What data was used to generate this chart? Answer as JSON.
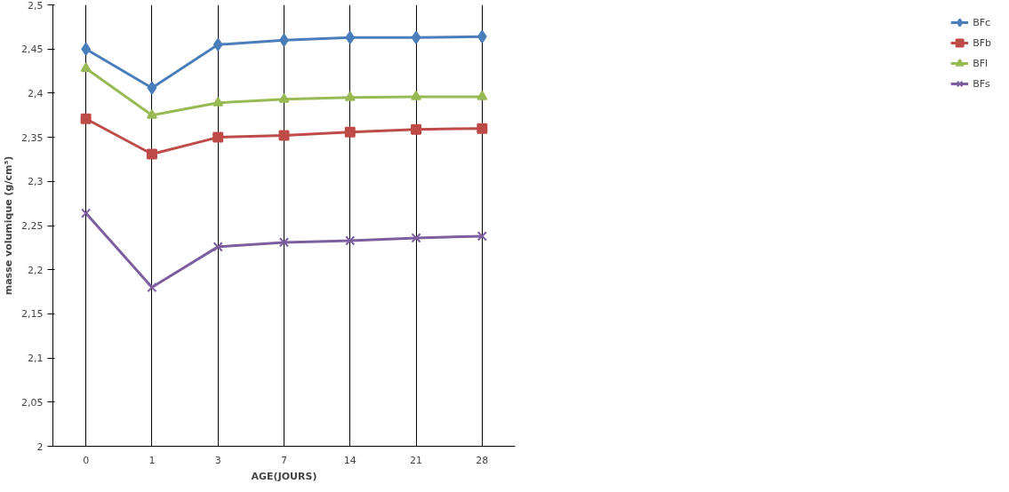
{
  "chart_data": {
    "type": "line",
    "xlabel": "AGE(JOURS)",
    "ylabel": "masse volumique (g/cm³)",
    "categories": [
      "0",
      "1",
      "3",
      "7",
      "14",
      "21",
      "28"
    ],
    "ylim": [
      2,
      2.5
    ],
    "yticks": [
      {
        "value": 2,
        "label": "2"
      },
      {
        "value": 2.05,
        "label": "2,05"
      },
      {
        "value": 2.1,
        "label": "2,1"
      },
      {
        "value": 2.15,
        "label": "2,15"
      },
      {
        "value": 2.2,
        "label": "2,2"
      },
      {
        "value": 2.25,
        "label": "2,25"
      },
      {
        "value": 2.3,
        "label": "2,3"
      },
      {
        "value": 2.35,
        "label": "2,35"
      },
      {
        "value": 2.4,
        "label": "2,4"
      },
      {
        "value": 2.45,
        "label": "2,45"
      },
      {
        "value": 2.5,
        "label": "2,5"
      }
    ],
    "grid": "x",
    "legend": "right",
    "line_style": "solid",
    "series": [
      {
        "name": "BFc",
        "color": "#4a7ebb",
        "marker": "diamond",
        "values": [
          2.45,
          2.406,
          2.455,
          2.46,
          2.463,
          2.463,
          2.464
        ]
      },
      {
        "name": "BFb",
        "color": "#be4b48",
        "marker": "square",
        "values": [
          2.371,
          2.331,
          2.35,
          2.352,
          2.356,
          2.359,
          2.36
        ]
      },
      {
        "name": "BFl",
        "color": "#98b954",
        "marker": "triangle",
        "values": [
          2.428,
          2.375,
          2.389,
          2.393,
          2.395,
          2.396,
          2.396
        ]
      },
      {
        "name": "BFs",
        "color": "#7d5fa0",
        "marker": "cross",
        "values": [
          2.264,
          2.18,
          2.226,
          2.231,
          2.233,
          2.236,
          2.238
        ]
      }
    ]
  }
}
